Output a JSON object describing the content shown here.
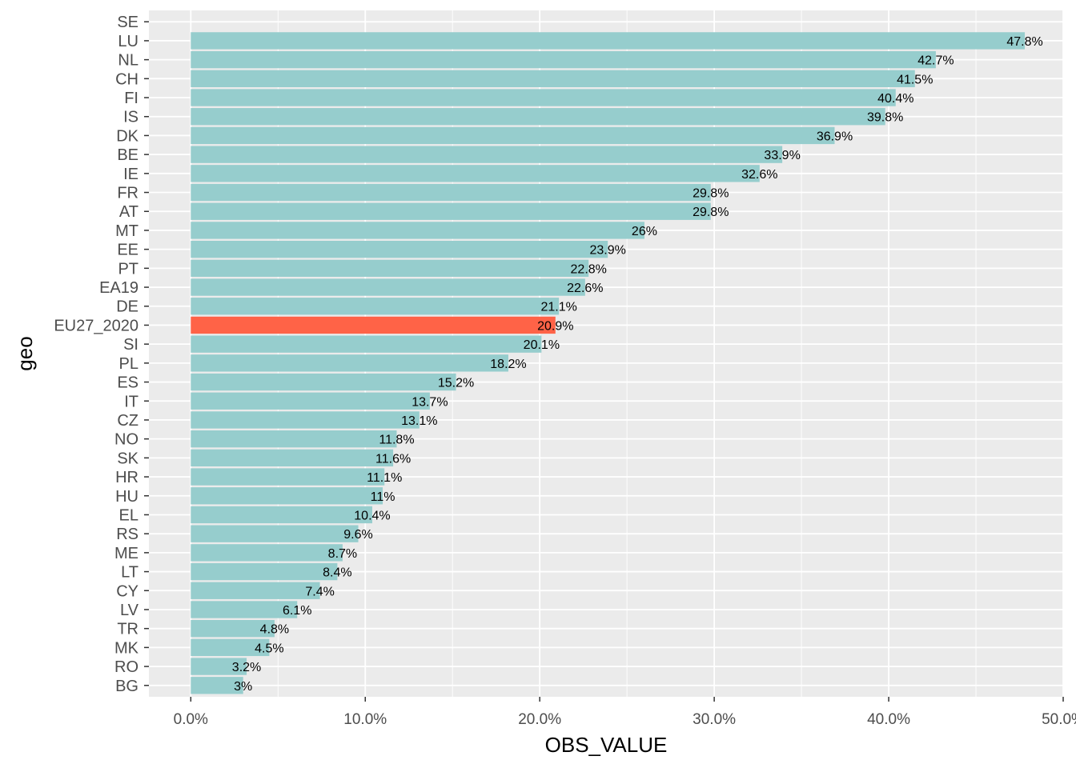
{
  "chart_data": {
    "type": "bar",
    "orientation": "horizontal",
    "xlabel": "OBS_VALUE",
    "ylabel": "geo",
    "xlim": [
      -2.4,
      50.0
    ],
    "x_ticks": [
      0,
      10,
      20,
      30,
      40,
      50
    ],
    "x_tick_labels": [
      "0.0%",
      "10.0%",
      "20.0%",
      "30.0%",
      "40.0%",
      "50.0%"
    ],
    "categories": [
      "SE",
      "LU",
      "NL",
      "CH",
      "FI",
      "IS",
      "DK",
      "BE",
      "IE",
      "FR",
      "AT",
      "MT",
      "EE",
      "PT",
      "EA19",
      "DE",
      "EU27_2020",
      "SI",
      "PL",
      "ES",
      "IT",
      "CZ",
      "NO",
      "SK",
      "HR",
      "HU",
      "EL",
      "RS",
      "ME",
      "LT",
      "CY",
      "LV",
      "TR",
      "MK",
      "RO",
      "BG"
    ],
    "values": [
      null,
      47.8,
      42.7,
      41.5,
      40.4,
      39.8,
      36.9,
      33.9,
      32.6,
      29.8,
      29.8,
      26,
      23.9,
      22.8,
      22.6,
      21.1,
      20.9,
      20.1,
      18.2,
      15.2,
      13.7,
      13.1,
      11.8,
      11.6,
      11.1,
      11,
      10.4,
      9.6,
      8.7,
      8.4,
      7.4,
      6.1,
      4.8,
      4.5,
      3.2,
      3
    ],
    "labels": [
      "",
      "47.8%",
      "42.7%",
      "41.5%",
      "40.4%",
      "39.8%",
      "36.9%",
      "33.9%",
      "32.6%",
      "29.8%",
      "29.8%",
      "26%",
      "23.9%",
      "22.8%",
      "22.6%",
      "21.1%",
      "20.9%",
      "20.1%",
      "18.2%",
      "15.2%",
      "13.7%",
      "13.1%",
      "11.8%",
      "11.6%",
      "11.1%",
      "11%",
      "10.4%",
      "9.6%",
      "8.7%",
      "8.4%",
      "7.4%",
      "6.1%",
      "4.8%",
      "4.5%",
      "3.2%",
      "3%"
    ],
    "highlight": "EU27_2020",
    "colors": {
      "default": "#96cdcd",
      "highlight": "#ff6347",
      "panel": "#ebebeb",
      "grid": "#ffffff"
    },
    "grid": true,
    "legend": "none"
  }
}
